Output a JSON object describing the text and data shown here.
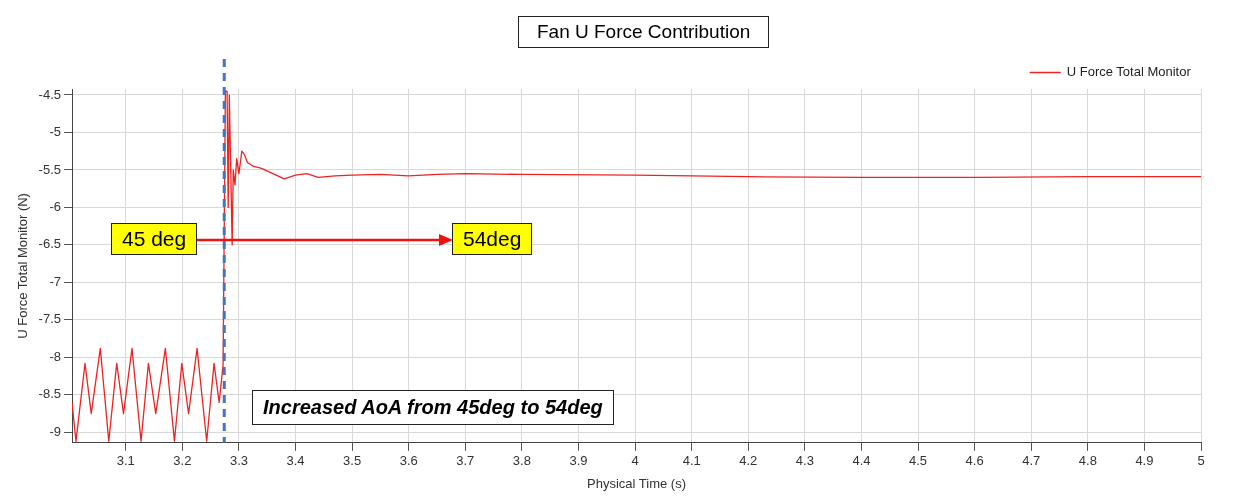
{
  "chart_data": {
    "type": "line",
    "title": "Fan U Force Contribution",
    "xlabel": "Physical Time (s)",
    "ylabel": "U Force Total Monitor (N)",
    "xlim": [
      3.005,
      5
    ],
    "ylim": [
      -9.14,
      -4.42
    ],
    "xticks": [
      3.1,
      3.2,
      3.3,
      3.4,
      3.5,
      3.6,
      3.7,
      3.8,
      3.9,
      4,
      4.1,
      4.2,
      4.3,
      4.4,
      4.5,
      4.6,
      4.7,
      4.8,
      4.9,
      5
    ],
    "yticks": [
      -4.5,
      -5,
      -5.5,
      -6,
      -6.5,
      -7,
      -7.5,
      -8,
      -8.5,
      -9
    ],
    "grid": true,
    "legend": "top right",
    "marker": "none",
    "line_style": "solid",
    "annotations": [
      "45 deg",
      "54deg",
      "Increased AoA from 45deg to 54deg"
    ],
    "ref_lines": [
      {
        "axis": "x",
        "value": 3.274,
        "color": "#4472c4",
        "line_style": "dashed"
      }
    ],
    "series": [
      {
        "name": "U Force Total Monitor",
        "color": "#ee2222",
        "x": [
          3.005,
          3.012,
          3.028,
          3.039,
          3.055,
          3.07,
          3.084,
          3.096,
          3.111,
          3.127,
          3.14,
          3.153,
          3.17,
          3.186,
          3.199,
          3.211,
          3.226,
          3.243,
          3.256,
          3.265,
          3.272,
          3.276,
          3.279,
          3.281,
          3.283,
          3.288,
          3.29,
          3.293,
          3.296,
          3.3,
          3.305,
          3.31,
          3.315,
          3.325,
          3.34,
          3.36,
          3.38,
          3.4,
          3.42,
          3.44,
          3.47,
          3.5,
          3.55,
          3.6,
          3.65,
          3.7,
          3.8,
          4.0,
          4.2,
          4.4,
          4.6,
          4.8,
          5.0
        ],
        "values": [
          -8.6,
          -9.12,
          -8.08,
          -8.75,
          -7.88,
          -9.12,
          -8.08,
          -8.75,
          -7.88,
          -9.12,
          -8.08,
          -8.75,
          -7.88,
          -9.12,
          -8.08,
          -8.75,
          -7.88,
          -9.12,
          -8.08,
          -8.6,
          -8.1,
          -4.45,
          -4.45,
          -6.0,
          -4.5,
          -6.5,
          -5.5,
          -5.7,
          -5.35,
          -5.55,
          -5.25,
          -5.3,
          -5.4,
          -5.45,
          -5.48,
          -5.55,
          -5.62,
          -5.57,
          -5.55,
          -5.6,
          -5.58,
          -5.57,
          -5.56,
          -5.58,
          -5.56,
          -5.55,
          -5.56,
          -5.57,
          -5.59,
          -5.6,
          -5.6,
          -5.59,
          -5.59
        ]
      }
    ]
  }
}
